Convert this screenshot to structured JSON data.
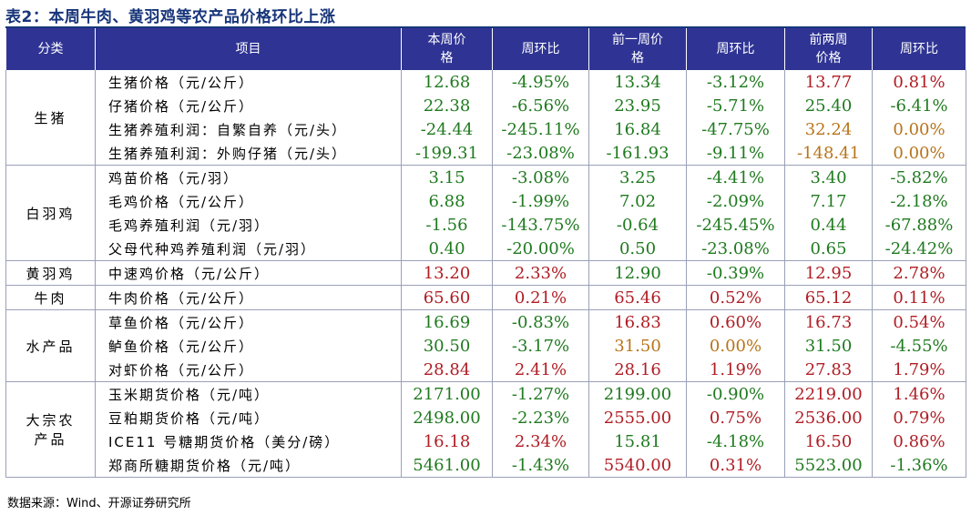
{
  "title": "表2：本周牛肉、黄羽鸡等农产品价格环比上涨",
  "headers": [
    "分类",
    "项目",
    "本周价\n格",
    "周环比",
    "前一周价\n格",
    "周环比",
    "前两周\n价格",
    "周环比"
  ],
  "groups": [
    {
      "category": "生猪",
      "rows": [
        {
          "item": "生猪价格（元/公斤）",
          "cells": [
            {
              "v": "12.68",
              "c": "g"
            },
            {
              "v": "-4.95%",
              "c": "g"
            },
            {
              "v": "13.34",
              "c": "g"
            },
            {
              "v": "-3.12%",
              "c": "g"
            },
            {
              "v": "13.77",
              "c": "r"
            },
            {
              "v": "0.81%",
              "c": "r"
            }
          ]
        },
        {
          "item": "仔猪价格（元/公斤）",
          "cells": [
            {
              "v": "22.38",
              "c": "g"
            },
            {
              "v": "-6.56%",
              "c": "g"
            },
            {
              "v": "23.95",
              "c": "g"
            },
            {
              "v": "-5.71%",
              "c": "g"
            },
            {
              "v": "25.40",
              "c": "g"
            },
            {
              "v": "-6.41%",
              "c": "g"
            }
          ]
        },
        {
          "item": "生猪养殖利润：自繁自养（元/头）",
          "cells": [
            {
              "v": "-24.44",
              "c": "g"
            },
            {
              "v": "-245.11%",
              "c": "g"
            },
            {
              "v": "16.84",
              "c": "g"
            },
            {
              "v": "-47.75%",
              "c": "g"
            },
            {
              "v": "32.24",
              "c": "o"
            },
            {
              "v": "0.00%",
              "c": "o"
            }
          ]
        },
        {
          "item": "生猪养殖利润：外购仔猪（元/头）",
          "cells": [
            {
              "v": "-199.31",
              "c": "g"
            },
            {
              "v": "-23.08%",
              "c": "g"
            },
            {
              "v": "-161.93",
              "c": "g"
            },
            {
              "v": "-9.11%",
              "c": "g"
            },
            {
              "v": "-148.41",
              "c": "o"
            },
            {
              "v": "0.00%",
              "c": "o"
            }
          ]
        }
      ]
    },
    {
      "category": "白羽鸡",
      "rows": [
        {
          "item": "鸡苗价格（元/羽）",
          "cells": [
            {
              "v": "3.15",
              "c": "g"
            },
            {
              "v": "-3.08%",
              "c": "g"
            },
            {
              "v": "3.25",
              "c": "g"
            },
            {
              "v": "-4.41%",
              "c": "g"
            },
            {
              "v": "3.40",
              "c": "g"
            },
            {
              "v": "-5.82%",
              "c": "g"
            }
          ]
        },
        {
          "item": "毛鸡价格（元/公斤）",
          "cells": [
            {
              "v": "6.88",
              "c": "g"
            },
            {
              "v": "-1.99%",
              "c": "g"
            },
            {
              "v": "7.02",
              "c": "g"
            },
            {
              "v": "-2.09%",
              "c": "g"
            },
            {
              "v": "7.17",
              "c": "g"
            },
            {
              "v": "-2.18%",
              "c": "g"
            }
          ]
        },
        {
          "item": "毛鸡养殖利润（元/羽）",
          "cells": [
            {
              "v": "-1.56",
              "c": "g"
            },
            {
              "v": "-143.75%",
              "c": "g"
            },
            {
              "v": "-0.64",
              "c": "g"
            },
            {
              "v": "-245.45%",
              "c": "g"
            },
            {
              "v": "0.44",
              "c": "g"
            },
            {
              "v": "-67.88%",
              "c": "g"
            }
          ]
        },
        {
          "item": "父母代种鸡养殖利润（元/羽）",
          "cells": [
            {
              "v": "0.40",
              "c": "g"
            },
            {
              "v": "-20.00%",
              "c": "g"
            },
            {
              "v": "0.50",
              "c": "g"
            },
            {
              "v": "-23.08%",
              "c": "g"
            },
            {
              "v": "0.65",
              "c": "g"
            },
            {
              "v": "-24.42%",
              "c": "g"
            }
          ]
        }
      ]
    },
    {
      "category": "黄羽鸡",
      "rows": [
        {
          "item": "中速鸡价格（元/公斤）",
          "cells": [
            {
              "v": "13.20",
              "c": "r"
            },
            {
              "v": "2.33%",
              "c": "r"
            },
            {
              "v": "12.90",
              "c": "g"
            },
            {
              "v": "-0.39%",
              "c": "g"
            },
            {
              "v": "12.95",
              "c": "r"
            },
            {
              "v": "2.78%",
              "c": "r"
            }
          ]
        }
      ]
    },
    {
      "category": "牛肉",
      "rows": [
        {
          "item": "牛肉价格（元/公斤）",
          "cells": [
            {
              "v": "65.60",
              "c": "r"
            },
            {
              "v": "0.21%",
              "c": "r"
            },
            {
              "v": "65.46",
              "c": "r"
            },
            {
              "v": "0.52%",
              "c": "r"
            },
            {
              "v": "65.12",
              "c": "r"
            },
            {
              "v": "0.11%",
              "c": "r"
            }
          ]
        }
      ]
    },
    {
      "category": "水产品",
      "rows": [
        {
          "item": "草鱼价格（元/公斤）",
          "cells": [
            {
              "v": "16.69",
              "c": "g"
            },
            {
              "v": "-0.83%",
              "c": "g"
            },
            {
              "v": "16.83",
              "c": "r"
            },
            {
              "v": "0.60%",
              "c": "r"
            },
            {
              "v": "16.73",
              "c": "r"
            },
            {
              "v": "0.54%",
              "c": "r"
            }
          ]
        },
        {
          "item": "鲈鱼价格（元/公斤）",
          "cells": [
            {
              "v": "30.50",
              "c": "g"
            },
            {
              "v": "-3.17%",
              "c": "g"
            },
            {
              "v": "31.50",
              "c": "o"
            },
            {
              "v": "0.00%",
              "c": "o"
            },
            {
              "v": "31.50",
              "c": "g"
            },
            {
              "v": "-4.55%",
              "c": "g"
            }
          ]
        },
        {
          "item": "对虾价格（元/公斤）",
          "cells": [
            {
              "v": "28.84",
              "c": "r"
            },
            {
              "v": "2.41%",
              "c": "r"
            },
            {
              "v": "28.16",
              "c": "r"
            },
            {
              "v": "1.19%",
              "c": "r"
            },
            {
              "v": "27.83",
              "c": "r"
            },
            {
              "v": "1.79%",
              "c": "r"
            }
          ]
        }
      ]
    },
    {
      "category": "大宗农\n产品",
      "rows": [
        {
          "item": "玉米期货价格（元/吨）",
          "cells": [
            {
              "v": "2171.00",
              "c": "g"
            },
            {
              "v": "-1.27%",
              "c": "g"
            },
            {
              "v": "2199.00",
              "c": "g"
            },
            {
              "v": "-0.90%",
              "c": "g"
            },
            {
              "v": "2219.00",
              "c": "r"
            },
            {
              "v": "1.46%",
              "c": "r"
            }
          ]
        },
        {
          "item": "豆粕期货价格（元/吨）",
          "cells": [
            {
              "v": "2498.00",
              "c": "g"
            },
            {
              "v": "-2.23%",
              "c": "g"
            },
            {
              "v": "2555.00",
              "c": "r"
            },
            {
              "v": "0.75%",
              "c": "r"
            },
            {
              "v": "2536.00",
              "c": "r"
            },
            {
              "v": "0.79%",
              "c": "r"
            }
          ]
        },
        {
          "item": "ICE11 号糖期货价格（美分/磅）",
          "cells": [
            {
              "v": "16.18",
              "c": "r"
            },
            {
              "v": "2.34%",
              "c": "r"
            },
            {
              "v": "15.81",
              "c": "g"
            },
            {
              "v": "-4.18%",
              "c": "g"
            },
            {
              "v": "16.50",
              "c": "r"
            },
            {
              "v": "0.86%",
              "c": "r"
            }
          ]
        },
        {
          "item": "郑商所糖期货价格（元/吨）",
          "cells": [
            {
              "v": "5461.00",
              "c": "g"
            },
            {
              "v": "-1.43%",
              "c": "g"
            },
            {
              "v": "5540.00",
              "c": "r"
            },
            {
              "v": "0.31%",
              "c": "r"
            },
            {
              "v": "5523.00",
              "c": "g"
            },
            {
              "v": "-1.36%",
              "c": "g"
            }
          ]
        }
      ]
    }
  ],
  "source": "数据来源：Wind、开源证券研究所"
}
